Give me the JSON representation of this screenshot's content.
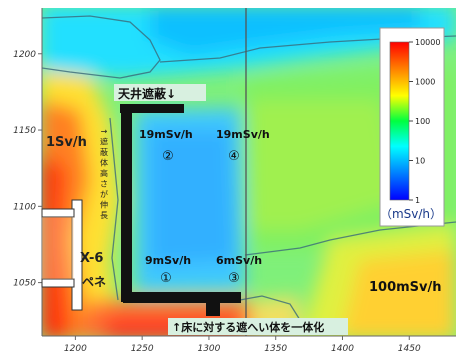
{
  "chart_data": {
    "type": "heatmap",
    "x_ticks": [
      1200,
      1250,
      1300,
      1350,
      1400,
      1450
    ],
    "y_ticks": [
      1050,
      1100,
      1150,
      1200
    ],
    "xlim": [
      1175,
      1485
    ],
    "ylim": [
      1015,
      1230
    ],
    "colorbar": {
      "scale": "log",
      "ticks": [
        "10000",
        "1000",
        "100",
        "10",
        "1"
      ],
      "unit": "（mSv/h）"
    },
    "colors": {
      "shield": "#111111",
      "penetration": "#ffffff",
      "label_box": "#d8f0e0",
      "cmap": [
        "#0000ff",
        "#0080ff",
        "#00ffff",
        "#00ff40",
        "#ffff00",
        "#ff8000",
        "#ff0000"
      ]
    },
    "annotations": {
      "ceiling_shield": "天井遮蔽↓",
      "shield_height": "→遮蔽体高さが伸長",
      "left_dose": "1Sv/h",
      "p2_dose": "19mSv/h",
      "p2_mark": "②",
      "p4_dose": "19mSv/h",
      "p4_mark": "④",
      "p1_dose": "9mSv/h",
      "p1_mark": "①",
      "p3_dose": "6mSv/h",
      "p3_mark": "③",
      "right_dose": "100mSv/h",
      "pene_name_1": "X-6",
      "pene_name_2": "ペネ",
      "floor_shield": "↑床に対する遮へい体を一体化"
    }
  }
}
